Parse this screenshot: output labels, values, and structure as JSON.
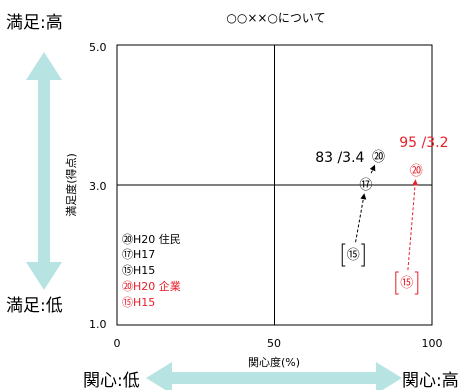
{
  "labels": {
    "sat_high": "満足:高",
    "sat_low": "満足:低",
    "int_low": "関心:低",
    "int_high": "関心:高"
  },
  "legend": [
    {
      "text": "⑳H20 住民",
      "color": "#000000"
    },
    {
      "text": "⑰H17",
      "color": "#000000"
    },
    {
      "text": "⑮H15",
      "color": "#000000"
    },
    {
      "text": "⑳H20 企業",
      "color": "#e8202a"
    },
    {
      "text": "⑮H15",
      "color": "#e8202a"
    }
  ],
  "colors": {
    "black_series": "#000000",
    "red_series": "#e8202a",
    "arrow": "#b7e3e2",
    "frame": "#000000"
  },
  "chart_data": {
    "type": "scatter",
    "title": "○○××○について",
    "xlabel": "関心度(%)",
    "ylabel": "満足度(得点)",
    "xlim": [
      0,
      100
    ],
    "ylim": [
      1.0,
      5.0
    ],
    "xticks": [
      "0",
      "50",
      "100"
    ],
    "yticks": [
      "1.0",
      "3.0",
      "5.0"
    ],
    "reference_lines": {
      "x": 50,
      "y": 3.0
    },
    "series": [
      {
        "points": [
          {
            "label": "⑮",
            "x": 75,
            "y": 2.0
          },
          {
            "label": "⑰",
            "x": 79,
            "y": 3.0
          },
          {
            "label": "⑳",
            "x": 83,
            "y": 3.4
          }
        ],
        "annotation": "83 /3.4"
      },
      {
        "points": [
          {
            "label": "⑮",
            "x": 92,
            "y": 1.6
          },
          {
            "label": "⑳",
            "x": 95,
            "y": 3.2
          }
        ],
        "annotation": "95 /3.2"
      }
    ]
  }
}
